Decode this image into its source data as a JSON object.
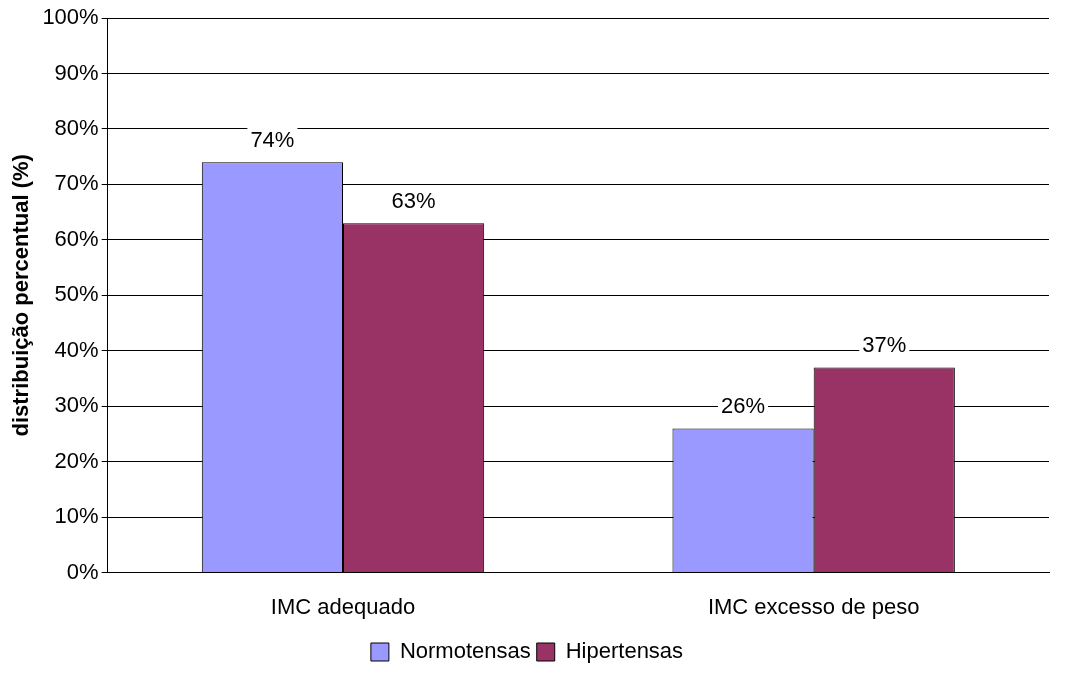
{
  "chart_data": {
    "type": "bar",
    "ylabel": "distribuição percentual (%)",
    "categories": [
      "IMC adequado",
      "IMC excesso de peso"
    ],
    "series": [
      {
        "name": "Normotensas",
        "color": "#9999ff",
        "values": [
          74,
          26
        ],
        "value_labels": [
          "74%",
          "26%"
        ]
      },
      {
        "name": "Hipertensas",
        "color": "#993366",
        "values": [
          63,
          37
        ],
        "value_labels": [
          "63%",
          "37%"
        ]
      }
    ],
    "ylim": [
      0,
      100
    ],
    "yticks": [
      {
        "value": 0,
        "label": "0%"
      },
      {
        "value": 10,
        "label": "10%"
      },
      {
        "value": 20,
        "label": "20%"
      },
      {
        "value": 30,
        "label": "30%"
      },
      {
        "value": 40,
        "label": "40%"
      },
      {
        "value": 50,
        "label": "50%"
      },
      {
        "value": 60,
        "label": "60%"
      },
      {
        "value": 70,
        "label": "70%"
      },
      {
        "value": 80,
        "label": "80%"
      },
      {
        "value": 90,
        "label": "90%"
      },
      {
        "value": 100,
        "label": "100%"
      }
    ],
    "grid": "y",
    "legend": "bottom"
  }
}
